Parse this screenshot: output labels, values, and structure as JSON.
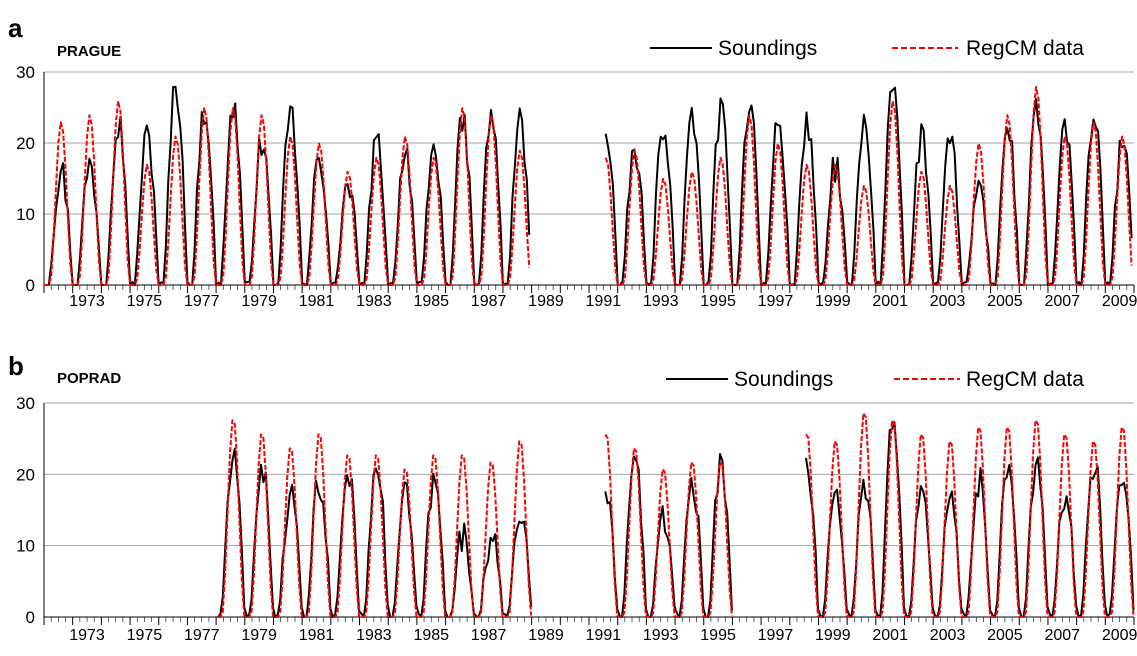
{
  "colors": {
    "soundings": "#000000",
    "regcm": "#ff0000",
    "grid": "#a6a6a6"
  },
  "legend": {
    "soundings": "Soundings",
    "regcm": "RegCM data"
  },
  "chart_data": [
    {
      "type": "line",
      "panel": "a",
      "title": "PRAGUE",
      "xlabel": "",
      "ylabel": "",
      "ylim": [
        0,
        30
      ],
      "xlim": [
        1972.0,
        2010.0
      ],
      "yticks": [
        "0",
        "10",
        "20",
        "30"
      ],
      "xticks": [
        "1973",
        "1975",
        "1977",
        "1979",
        "1981",
        "1983",
        "1985",
        "1987",
        "1989",
        "1991",
        "1993",
        "1995",
        "1997",
        "1999",
        "2001",
        "2003",
        "2005",
        "2007",
        "2009"
      ],
      "grid": true,
      "legend_position": "top-right",
      "gaps": [
        [
          1989.0,
          1991.5
        ]
      ],
      "series": [
        {
          "name": "Soundings",
          "style": "solid",
          "peaks": [
            [
              1972.6,
              16
            ],
            [
              1973.6,
              17
            ],
            [
              1974.6,
              23
            ],
            [
              1975.6,
              21
            ],
            [
              1976.6,
              28
            ],
            [
              1977.6,
              25
            ],
            [
              1978.6,
              25
            ],
            [
              1979.6,
              20
            ],
            [
              1980.6,
              24
            ],
            [
              1981.6,
              18
            ],
            [
              1982.6,
              14
            ],
            [
              1983.6,
              20
            ],
            [
              1984.6,
              19
            ],
            [
              1985.6,
              19
            ],
            [
              1986.6,
              23
            ],
            [
              1987.6,
              24
            ],
            [
              1988.6,
              23
            ],
            [
              1991.6,
              22
            ],
            [
              1992.6,
              19
            ],
            [
              1993.6,
              23
            ],
            [
              1994.6,
              23
            ],
            [
              1995.6,
              24
            ],
            [
              1996.6,
              26
            ],
            [
              1997.6,
              23
            ],
            [
              1998.6,
              23
            ],
            [
              1999.6,
              17
            ],
            [
              2000.6,
              22
            ],
            [
              2001.6,
              29
            ],
            [
              2002.6,
              21
            ],
            [
              2003.6,
              20
            ],
            [
              2004.6,
              14
            ],
            [
              2005.6,
              22
            ],
            [
              2006.6,
              24
            ],
            [
              2007.6,
              22
            ],
            [
              2008.6,
              24
            ],
            [
              2009.6,
              20
            ]
          ]
        },
        {
          "name": "RegCM data",
          "style": "dashed",
          "peaks": [
            [
              1972.6,
              23
            ],
            [
              1973.6,
              24
            ],
            [
              1974.6,
              26
            ],
            [
              1975.6,
              17
            ],
            [
              1976.6,
              21
            ],
            [
              1977.6,
              25
            ],
            [
              1978.6,
              25
            ],
            [
              1979.6,
              24
            ],
            [
              1980.6,
              21
            ],
            [
              1981.6,
              20
            ],
            [
              1982.6,
              16
            ],
            [
              1983.6,
              18
            ],
            [
              1984.6,
              21
            ],
            [
              1985.6,
              18
            ],
            [
              1986.6,
              25
            ],
            [
              1987.6,
              24
            ],
            [
              1988.6,
              19
            ],
            [
              1991.6,
              18
            ],
            [
              1992.6,
              19
            ],
            [
              1993.6,
              15
            ],
            [
              1994.6,
              16
            ],
            [
              1995.6,
              18
            ],
            [
              1996.6,
              24
            ],
            [
              1997.6,
              20
            ],
            [
              1998.6,
              17
            ],
            [
              1999.6,
              17
            ],
            [
              2000.6,
              14
            ],
            [
              2001.6,
              26
            ],
            [
              2002.6,
              16
            ],
            [
              2003.6,
              14
            ],
            [
              2004.6,
              20
            ],
            [
              2005.6,
              24
            ],
            [
              2006.6,
              28
            ],
            [
              2007.6,
              21
            ],
            [
              2008.6,
              23
            ],
            [
              2009.6,
              21
            ]
          ]
        }
      ]
    },
    {
      "type": "line",
      "panel": "b",
      "title": "POPRAD",
      "xlabel": "",
      "ylabel": "",
      "ylim": [
        0,
        30
      ],
      "xlim": [
        1972.0,
        2010.0
      ],
      "yticks": [
        "0",
        "10",
        "20",
        "30"
      ],
      "xticks": [
        "1973",
        "1975",
        "1977",
        "1979",
        "1981",
        "1983",
        "1985",
        "1987",
        "1989",
        "1991",
        "1993",
        "1995",
        "1997",
        "1999",
        "2001",
        "2003",
        "2005",
        "2007",
        "2009"
      ],
      "grid": true,
      "legend_position": "top-right",
      "start": 1977.9,
      "gaps": [
        [
          1989.0,
          1991.5
        ],
        [
          1996.3,
          1998.5
        ]
      ],
      "series": [
        {
          "name": "Soundings",
          "style": "solid",
          "peaks": [
            [
              1978.6,
              22
            ],
            [
              1979.6,
              21
            ],
            [
              1980.6,
              17
            ],
            [
              1981.6,
              19
            ],
            [
              1982.6,
              20
            ],
            [
              1983.6,
              22
            ],
            [
              1984.6,
              17
            ],
            [
              1985.6,
              19
            ],
            [
              1986.6,
              11
            ],
            [
              1987.6,
              11
            ],
            [
              1988.6,
              15
            ],
            [
              1991.6,
              17
            ],
            [
              1992.6,
              22
            ],
            [
              1993.6,
              14
            ],
            [
              1994.6,
              19
            ],
            [
              1995.6,
              21
            ],
            [
              1998.6,
              22
            ],
            [
              1999.6,
              18
            ],
            [
              2000.6,
              19
            ],
            [
              2001.6,
              27
            ],
            [
              2002.6,
              19
            ],
            [
              2003.6,
              16
            ],
            [
              2004.6,
              19
            ],
            [
              2005.6,
              21
            ],
            [
              2006.6,
              21
            ],
            [
              2007.6,
              17
            ],
            [
              2008.6,
              22
            ],
            [
              2009.6,
              20
            ]
          ]
        },
        {
          "name": "RegCM data",
          "style": "dashed",
          "peaks": [
            [
              1978.6,
              28
            ],
            [
              1979.6,
              26
            ],
            [
              1980.6,
              24
            ],
            [
              1981.6,
              26
            ],
            [
              1982.6,
              23
            ],
            [
              1983.6,
              23
            ],
            [
              1984.6,
              21
            ],
            [
              1985.6,
              23
            ],
            [
              1986.6,
              23
            ],
            [
              1987.6,
              22
            ],
            [
              1988.6,
              25
            ],
            [
              1991.6,
              26
            ],
            [
              1992.6,
              24
            ],
            [
              1993.6,
              21
            ],
            [
              1994.6,
              22
            ],
            [
              1995.6,
              22
            ],
            [
              1998.6,
              26
            ],
            [
              1999.6,
              25
            ],
            [
              2000.6,
              29
            ],
            [
              2001.6,
              28
            ],
            [
              2002.6,
              26
            ],
            [
              2003.6,
              25
            ],
            [
              2004.6,
              27
            ],
            [
              2005.6,
              27
            ],
            [
              2006.6,
              28
            ],
            [
              2007.6,
              26
            ],
            [
              2008.6,
              25
            ],
            [
              2009.6,
              27
            ]
          ]
        }
      ]
    }
  ]
}
